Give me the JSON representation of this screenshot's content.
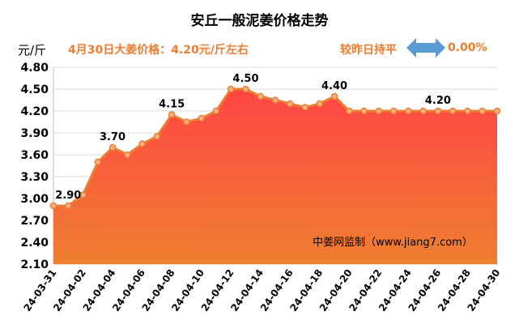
{
  "header": {
    "title": "安丘一般泥姜价格走势",
    "unit": "元/斤",
    "info": "4月30日大姜价格：4.20元/斤左右",
    "compare": "较昨日持平",
    "change": "0.00%",
    "arrow_icon": "double-arrow-icon"
  },
  "watermark": "中姜网监制（www.jiang7.com）",
  "colors": {
    "line": "#ed7d31",
    "point_fill": "#f4b183",
    "area_top": "#ff4545",
    "area_bottom": "#ef7f2f",
    "text_accent": "#ed7d31",
    "arrow": "#5b9bd5"
  },
  "chart_data": {
    "type": "area",
    "x": [
      "24-03-31",
      "24-04-01",
      "24-04-02",
      "24-04-03",
      "24-04-04",
      "24-04-05",
      "24-04-06",
      "24-04-07",
      "24-04-08",
      "24-04-09",
      "24-04-10",
      "24-04-11",
      "24-04-12",
      "24-04-13",
      "24-04-14",
      "24-04-15",
      "24-04-16",
      "24-04-17",
      "24-04-18",
      "24-04-19",
      "24-04-20",
      "24-04-21",
      "24-04-22",
      "24-04-23",
      "24-04-24",
      "24-04-25",
      "24-04-26",
      "24-04-27",
      "24-04-28",
      "24-04-29",
      "24-04-30"
    ],
    "y": [
      2.9,
      2.9,
      3.05,
      3.5,
      3.7,
      3.6,
      3.75,
      3.85,
      4.15,
      4.05,
      4.1,
      4.2,
      4.5,
      4.5,
      4.4,
      4.35,
      4.3,
      4.25,
      4.3,
      4.4,
      4.2,
      4.2,
      4.2,
      4.2,
      4.2,
      4.2,
      4.2,
      4.2,
      4.2,
      4.2,
      4.2
    ],
    "x_tick_labels": [
      "24-03-31",
      "24-04-02",
      "24-04-04",
      "24-04-06",
      "24-04-08",
      "24-04-10",
      "24-04-12",
      "24-04-14",
      "24-04-16",
      "24-04-18",
      "24-04-20",
      "24-04-22",
      "24-04-24",
      "24-04-26",
      "24-04-28",
      "24-04-30"
    ],
    "y_ticks": [
      "2.10",
      "2.40",
      "2.70",
      "3.00",
      "3.30",
      "3.60",
      "3.90",
      "4.20",
      "4.50",
      "4.80"
    ],
    "ylim": [
      2.1,
      4.8
    ],
    "data_labels": [
      {
        "index": 1,
        "text": "2.90"
      },
      {
        "index": 4,
        "text": "3.70"
      },
      {
        "index": 8,
        "text": "4.15"
      },
      {
        "index": 13,
        "text": "4.50"
      },
      {
        "index": 19,
        "text": "4.40"
      },
      {
        "index": 26,
        "text": "4.20"
      }
    ],
    "grid": true,
    "legend": "none"
  }
}
